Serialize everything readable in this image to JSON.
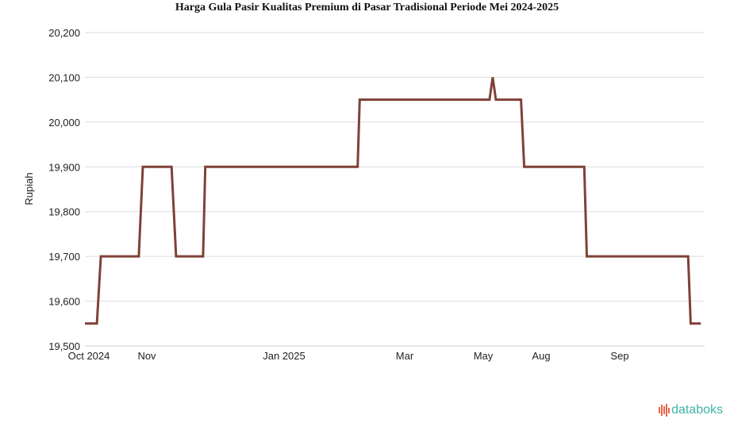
{
  "chart_data": {
    "type": "line",
    "title": "Harga Gula Pasir Kualitas Premium di Pasar Tradisional Periode Mei 2024-2025",
    "xlabel": "",
    "ylabel": "Rupiah",
    "ylim": [
      19500,
      20200
    ],
    "yticks": [
      19500,
      19600,
      19700,
      19800,
      19900,
      20000,
      20100,
      20200
    ],
    "ytick_labels": [
      "19,500",
      "19,600",
      "19,700",
      "19,800",
      "19,900",
      "20,000",
      "20,100",
      "20,200"
    ],
    "xticks": [
      {
        "date": "2024-10-01",
        "label": "Oct 2024"
      },
      {
        "date": "2024-11-01",
        "label": "Nov"
      },
      {
        "date": "2025-01-01",
        "label": "Jan 2025"
      },
      {
        "date": "2025-03-01",
        "label": "Mar"
      },
      {
        "date": "2025-05-01",
        "label": "May"
      },
      {
        "date": "2025-08-01",
        "label": "Aug"
      },
      {
        "date": "2025-09-01",
        "label": "Sep"
      }
    ],
    "grid": true,
    "line_color": "#7f4136",
    "series": [
      {
        "x": [
          "2024-10-01",
          "2024-10-07",
          "2024-10-09",
          "2024-10-28",
          "2024-10-30",
          "2024-11-12",
          "2024-11-14",
          "2024-11-26",
          "2024-11-27",
          "2025-02-06",
          "2025-02-07",
          "2025-05-11",
          "2025-05-16",
          "2025-05-21",
          "2025-06-30",
          "2025-07-05",
          "2025-08-18",
          "2025-08-19",
          "2025-09-28",
          "2025-09-29",
          "2025-10-03"
        ],
        "values": [
          19550,
          19550,
          19700,
          19700,
          19900,
          19900,
          19700,
          19700,
          19900,
          19900,
          20050,
          20050,
          20100,
          20050,
          20050,
          19900,
          19900,
          19700,
          19700,
          19550,
          19550
        ]
      }
    ]
  },
  "branding": {
    "logo_text": "databoks"
  }
}
